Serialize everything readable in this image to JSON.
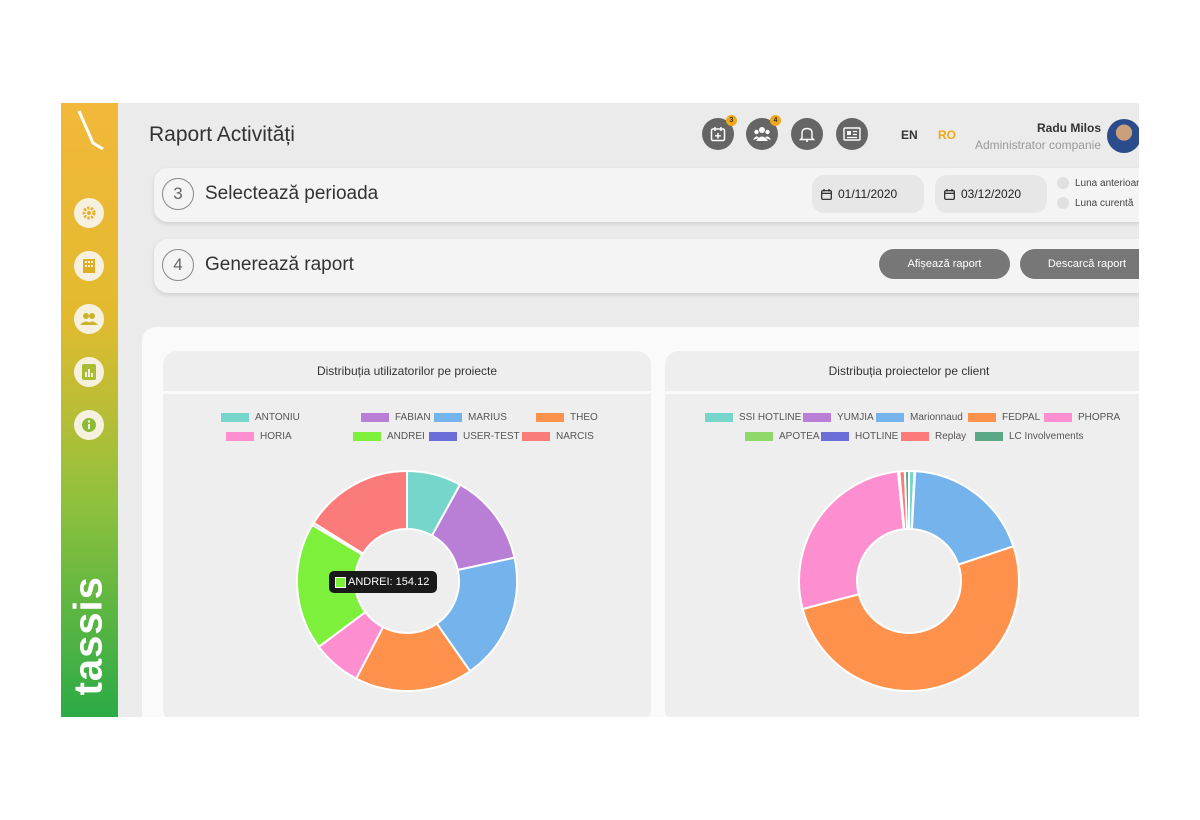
{
  "header": {
    "title": "Raport Activități",
    "icons": [
      {
        "name": "calendar-add-icon",
        "badge": "3"
      },
      {
        "name": "users-icon",
        "badge": "4"
      },
      {
        "name": "bell-icon",
        "badge": ""
      },
      {
        "name": "news-icon",
        "badge": ""
      }
    ],
    "lang_en": "EN",
    "lang_ro": "RO",
    "user_name": "Radu Milos",
    "user_role": "Administrator companie"
  },
  "sidebar": {
    "brand": "tassis",
    "items": [
      "gear-icon",
      "building-icon",
      "people-icon",
      "report-icon",
      "info-icon"
    ]
  },
  "step3": {
    "number": "3",
    "label": "Selectează perioada",
    "date_from": "01/11/2020",
    "date_to": "03/12/2020",
    "radio_prev": "Luna anterioară",
    "radio_curr": "Luna curentă"
  },
  "step4": {
    "number": "4",
    "label": "Generează raport",
    "show_btn": "Afișează raport",
    "download_btn": "Descarcă raport"
  },
  "tooltip": {
    "text": "ANDREI: 154.12"
  },
  "chart_data": [
    {
      "type": "pie",
      "title": "Distribuția utilizatorilor pe proiecte",
      "categories": [
        "ANTONIU",
        "FABIAN",
        "MARIUS",
        "THEO",
        "HORIA",
        "ANDREI",
        "USER-TEST",
        "NARCIS"
      ],
      "values": [
        66,
        112,
        154,
        143,
        59,
        154.12,
        3,
        133
      ],
      "colors": [
        "#77d6cb",
        "#b97fd6",
        "#74b3eb",
        "#fe914b",
        "#fd8fd0",
        "#7cf03a",
        "#6b6ed6",
        "#fb7a7a"
      ],
      "donut": true
    },
    {
      "type": "pie",
      "title": "Distribuția proiectelor pe client",
      "categories": [
        "SSI HOTLINE",
        "YUMJIA",
        "Marionnaud",
        "FEDPAL",
        "PHOPRA",
        "APOTEA",
        "HOTLINE",
        "Replay",
        "LC Involvements"
      ],
      "values": [
        0.8,
        0.1,
        19,
        51,
        27.5,
        0.1,
        0.1,
        0.8,
        0.6
      ],
      "colors": [
        "#77d6cb",
        "#b97fd6",
        "#74b3eb",
        "#fe914b",
        "#fd8fd0",
        "#8fd86a",
        "#6b6ed6",
        "#fb7a7a",
        "#5aa886"
      ],
      "donut": true
    }
  ]
}
